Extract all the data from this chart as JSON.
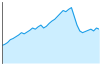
{
  "x": [
    0,
    1,
    2,
    3,
    4,
    5,
    6,
    7,
    8,
    9,
    10,
    11,
    12,
    13,
    14,
    15,
    16,
    17,
    18,
    19,
    20,
    21,
    22,
    23,
    24,
    25,
    26,
    27,
    28,
    29,
    30,
    31,
    32,
    33,
    34,
    35
  ],
  "y": [
    0.3,
    0.32,
    0.35,
    0.4,
    0.42,
    0.45,
    0.48,
    0.52,
    0.5,
    0.53,
    0.56,
    0.6,
    0.58,
    0.62,
    0.65,
    0.6,
    0.63,
    0.68,
    0.72,
    0.75,
    0.8,
    0.85,
    0.9,
    0.88,
    0.92,
    0.95,
    0.8,
    0.65,
    0.55,
    0.52,
    0.54,
    0.56,
    0.58,
    0.55,
    0.6,
    0.58
  ],
  "line_color": "#1a9ee8",
  "fill_color": "#cceeff",
  "background_color": "#ffffff",
  "axis_color": "#555555",
  "ylim": [
    0.0,
    1.05
  ],
  "xlim": [
    0,
    35
  ]
}
